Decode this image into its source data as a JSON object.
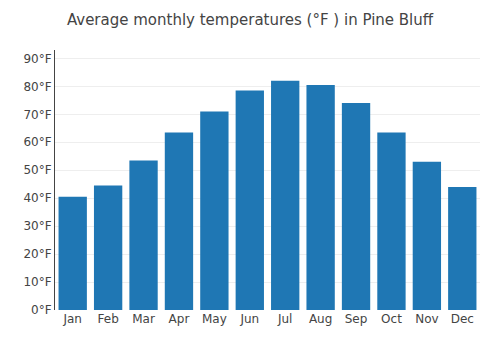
{
  "chart_data": {
    "type": "bar",
    "title": "Average monthly temperatures (°F ) in Pine Bluff",
    "categories": [
      "Jan",
      "Feb",
      "Mar",
      "Apr",
      "May",
      "Jun",
      "Jul",
      "Aug",
      "Sep",
      "Oct",
      "Nov",
      "Dec"
    ],
    "values": [
      40.5,
      44.5,
      53.5,
      63.5,
      71.0,
      78.5,
      82.0,
      80.5,
      74.0,
      63.5,
      53.0,
      44.0
    ],
    "ylim": [
      0,
      93
    ],
    "yticks": [
      {
        "value": 0,
        "label": "0°F"
      },
      {
        "value": 10,
        "label": "10°F"
      },
      {
        "value": 20,
        "label": "20°F"
      },
      {
        "value": 30,
        "label": "30°F"
      },
      {
        "value": 40,
        "label": "40°F"
      },
      {
        "value": 50,
        "label": "50°F"
      },
      {
        "value": 60,
        "label": "60°F"
      },
      {
        "value": 70,
        "label": "70°F"
      },
      {
        "value": 80,
        "label": "80°F"
      },
      {
        "value": 90,
        "label": "90°F"
      }
    ],
    "grid": true
  }
}
